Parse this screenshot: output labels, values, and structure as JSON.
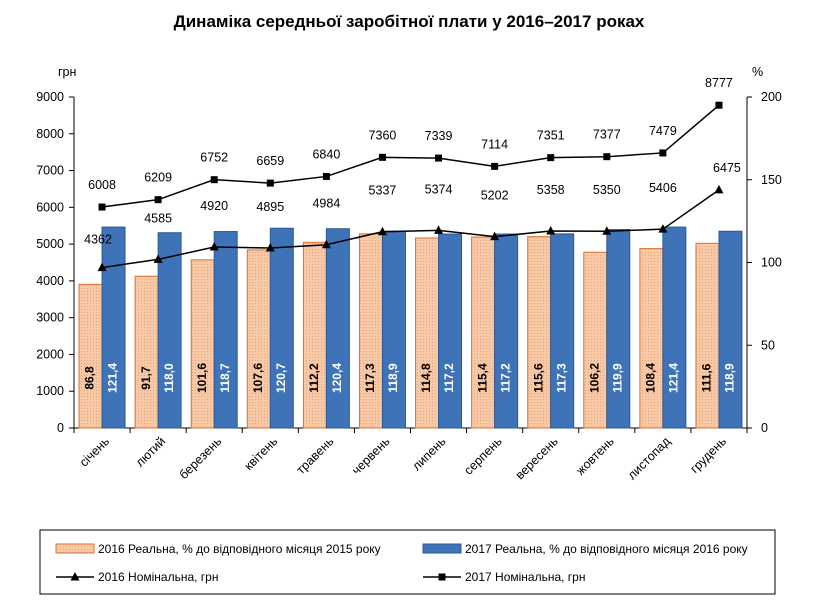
{
  "chart_data": {
    "type": "bar",
    "title": "Динаміка середньої заробітної плати у 2016–2017 роках",
    "left_unit": "грн",
    "right_unit": "%",
    "categories": [
      "січень",
      "лютий",
      "березень",
      "квітень",
      "травень",
      "червень",
      "липень",
      "серпень",
      "вересень",
      "жовтень",
      "листопад",
      "грудень"
    ],
    "left_axis": {
      "min": 0,
      "max": 9000,
      "step": 1000,
      "ticks": [
        "0",
        "1000",
        "2000",
        "3000",
        "4000",
        "5000",
        "6000",
        "7000",
        "8000",
        "9000"
      ]
    },
    "right_axis": {
      "min": 0,
      "max": 200,
      "step": 50,
      "ticks": [
        "0",
        "50",
        "100",
        "150",
        "200"
      ]
    },
    "bar_series": [
      {
        "name": "2016 Реальна, % до відповідного місяця 2015 року",
        "axis": "right",
        "color": "#f8c9a6",
        "values": [
          86.8,
          91.7,
          101.6,
          107.6,
          112.2,
          117.3,
          114.8,
          115.4,
          115.6,
          106.2,
          108.4,
          111.6
        ],
        "labels": [
          "86,8",
          "91,7",
          "101,6",
          "107,6",
          "112,2",
          "117,3",
          "114,8",
          "115,4",
          "115,6",
          "106,2",
          "108,4",
          "111,6"
        ]
      },
      {
        "name": "2017 Реальна, % до відповідного місяця 2016 року",
        "axis": "right",
        "color": "#3f73b8",
        "values": [
          121.4,
          118.0,
          118.7,
          120.7,
          120.4,
          118.9,
          117.2,
          117.2,
          117.3,
          119.9,
          121.4,
          118.9
        ],
        "labels": [
          "121,4",
          "118,0",
          "118,7",
          "120,7",
          "120,4",
          "118,9",
          "117,2",
          "117,2",
          "117,3",
          "119,9",
          "121,4",
          "118,9"
        ]
      }
    ],
    "line_series": [
      {
        "name": "2016 Номінальна, грн",
        "axis": "left",
        "marker": "triangle",
        "values": [
          4362,
          4585,
          4920,
          4895,
          4984,
          5337,
          5374,
          5202,
          5358,
          5350,
          5406,
          6475
        ],
        "labels": [
          "4362",
          "4585",
          "4920",
          "4895",
          "4984",
          "5337",
          "5374",
          "5202",
          "5358",
          "5350",
          "5406",
          "6475"
        ]
      },
      {
        "name": "2017 Номінальна, грн",
        "axis": "left",
        "marker": "square",
        "values": [
          6008,
          6209,
          6752,
          6659,
          6840,
          7360,
          7339,
          7114,
          7351,
          7377,
          7479,
          8777
        ],
        "labels": [
          "6008",
          "6209",
          "6752",
          "6659",
          "6840",
          "7360",
          "7339",
          "7114",
          "7351",
          "7377",
          "7479",
          "8777"
        ]
      }
    ],
    "grid": false,
    "legend_position": "bottom"
  }
}
